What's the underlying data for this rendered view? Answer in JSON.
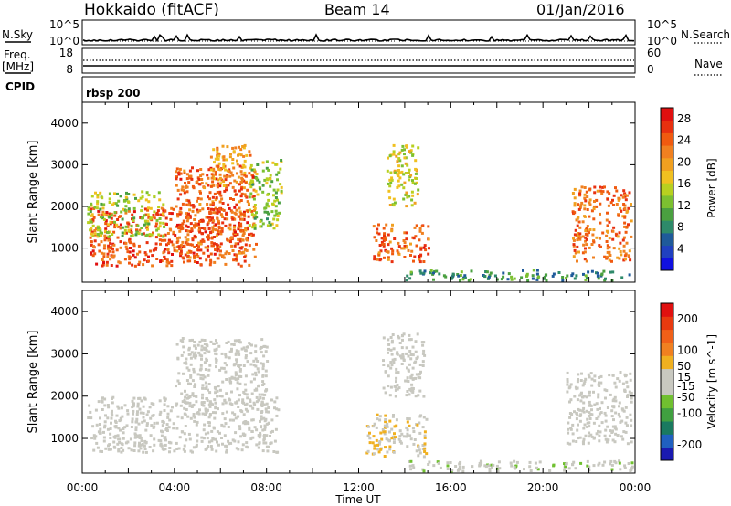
{
  "header": {
    "station": "Hokkaido (fitACF)",
    "beam": "Beam 14",
    "date": "01/Jan/2016"
  },
  "side_labels": {
    "nsky": "N.Sky",
    "freq": "Freq.",
    "mhz": "[MHz]",
    "cpid": "CPID",
    "nsearch": "N.Search",
    "nave": "Nave"
  },
  "nsky_ticks": [
    "10^5",
    "10^0"
  ],
  "nsearch_ticks": [
    "10^5",
    "10^0"
  ],
  "freq_ticks": [
    "18",
    "8"
  ],
  "nave_ticks": [
    "60",
    "0"
  ],
  "cpid_text": "rbsp 200",
  "colors": {
    "power_scale": [
      "#1010e0",
      "#2040c0",
      "#1f5a9a",
      "#2e8a6a",
      "#4aa040",
      "#7cc030",
      "#b8d020",
      "#f0c020",
      "#f0a020",
      "#f08020",
      "#f05a10",
      "#e83010",
      "#e01010"
    ],
    "velocity_scale": [
      "#1a1ab0",
      "#2060c0",
      "#1a7a60",
      "#40a040",
      "#70c030",
      "#c8c8c0",
      "#c8c8c0",
      "#f0b020",
      "#f08020",
      "#f06018",
      "#e83a10",
      "#e01010"
    ]
  },
  "chart_data": [
    {
      "type": "heatmap",
      "name": "power",
      "ylabel": "Slant Range [km]",
      "ylim": [
        180,
        4500
      ],
      "yticks": [
        1000,
        2000,
        3000,
        4000
      ],
      "xlim": [
        0,
        24
      ],
      "colorbar_label": "Power [dB]",
      "colorbar_ticks": [
        4,
        8,
        12,
        16,
        20,
        24,
        28
      ],
      "colorbar_range": [
        0,
        30
      ],
      "features": [
        {
          "t0": 0.3,
          "t1": 7.2,
          "r0": 600,
          "r1": 2000,
          "v": 25
        },
        {
          "t0": 0.2,
          "t1": 3.5,
          "r0": 1300,
          "r1": 2400,
          "v": 14
        },
        {
          "t0": 4.0,
          "t1": 7.5,
          "r0": 800,
          "r1": 3000,
          "v": 24
        },
        {
          "t0": 5.5,
          "t1": 7.3,
          "r0": 2500,
          "r1": 3500,
          "v": 20
        },
        {
          "t0": 7.2,
          "t1": 8.6,
          "r0": 1500,
          "r1": 3200,
          "v": 13
        },
        {
          "t0": 12.6,
          "t1": 15.0,
          "r0": 700,
          "r1": 1600,
          "v": 24
        },
        {
          "t0": 13.2,
          "t1": 14.6,
          "r0": 2000,
          "r1": 3500,
          "v": 16
        },
        {
          "t0": 14.0,
          "t1": 23.9,
          "r0": 250,
          "r1": 500,
          "v": 9
        },
        {
          "t0": 21.2,
          "t1": 23.8,
          "r0": 700,
          "r1": 2500,
          "v": 23
        }
      ]
    },
    {
      "type": "heatmap",
      "name": "velocity",
      "ylabel": "Slant Range [km]",
      "ylim": [
        180,
        4500
      ],
      "yticks": [
        1000,
        2000,
        3000,
        4000
      ],
      "xlim": [
        0,
        24
      ],
      "xticks": [
        "00:00",
        "04:00",
        "08:00",
        "12:00",
        "16:00",
        "20:00",
        "00:00"
      ],
      "xlabel": "Time UT",
      "colorbar_label": "Velocity [m s^-1]",
      "colorbar_ticks": [
        200,
        100,
        50,
        15,
        -15,
        -50,
        -100,
        -200
      ],
      "colorbar_range": [
        -250,
        250
      ],
      "features": [
        {
          "t0": 0.2,
          "t1": 8.5,
          "r0": 700,
          "r1": 2000,
          "v": 0
        },
        {
          "t0": 4.0,
          "t1": 8.0,
          "r0": 1800,
          "r1": 3400,
          "v": 0
        },
        {
          "t0": 12.3,
          "t1": 14.9,
          "r0": 600,
          "r1": 1600,
          "v": 35
        },
        {
          "t0": 13.0,
          "t1": 14.8,
          "r0": 2000,
          "r1": 3500,
          "v": 0
        },
        {
          "t0": 14.0,
          "t1": 23.9,
          "r0": 250,
          "r1": 500,
          "v": -30
        },
        {
          "t0": 21.0,
          "t1": 23.8,
          "r0": 900,
          "r1": 2600,
          "v": 0
        }
      ]
    }
  ]
}
